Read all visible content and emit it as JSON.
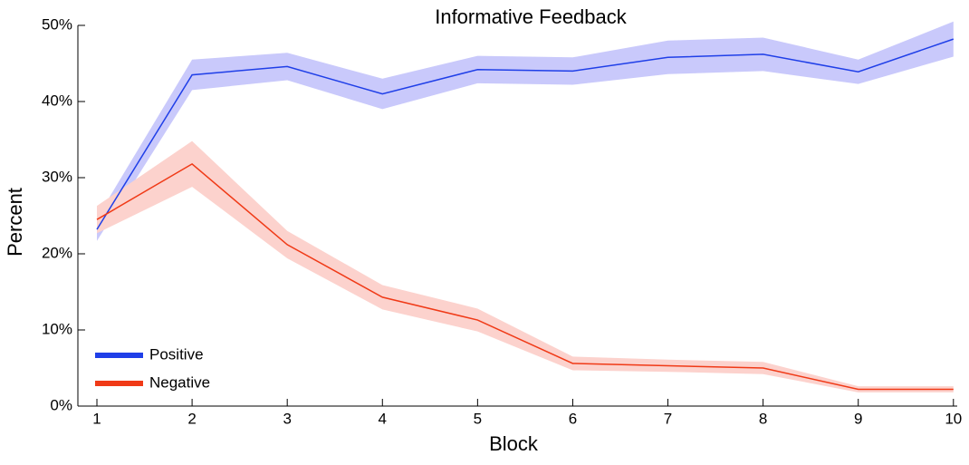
{
  "chart_data": {
    "type": "line",
    "title": "Informative Feedback",
    "x_label": "Block",
    "y_label": "Percent",
    "x": [
      1,
      2,
      3,
      4,
      5,
      6,
      7,
      8,
      9,
      10
    ],
    "series": [
      {
        "name": "Positive",
        "color": "#1f3fe8",
        "band_color": "#c9c9fb",
        "values": [
          23.2,
          43.5,
          44.6,
          41.0,
          44.2,
          44.0,
          45.8,
          46.2,
          43.9,
          48.2
        ],
        "errors": [
          1.5,
          2.0,
          1.8,
          2.0,
          1.8,
          1.8,
          2.2,
          2.2,
          1.6,
          2.3
        ]
      },
      {
        "name": "Negative",
        "color": "#f03a17",
        "band_color": "#fcd2cd",
        "values": [
          24.5,
          31.8,
          21.2,
          14.3,
          11.3,
          5.6,
          5.3,
          5.0,
          2.2,
          2.2
        ],
        "errors": [
          1.8,
          3.0,
          1.8,
          1.6,
          1.5,
          0.9,
          0.8,
          0.8,
          0.4,
          0.4
        ]
      }
    ],
    "xlim": [
      0.8,
      10.04
    ],
    "xticks": [
      1,
      2,
      3,
      4,
      5,
      6,
      7,
      8,
      9,
      10
    ],
    "ylim": [
      0,
      50
    ],
    "yticks": [
      {
        "value": 0,
        "label": "0%"
      },
      {
        "value": 10,
        "label": "10%"
      },
      {
        "value": 20,
        "label": "20%"
      },
      {
        "value": 30,
        "label": "30%"
      },
      {
        "value": 40,
        "label": "40%"
      },
      {
        "value": 50,
        "label": "50%"
      }
    ],
    "legend": "lower-left",
    "grid": false
  }
}
